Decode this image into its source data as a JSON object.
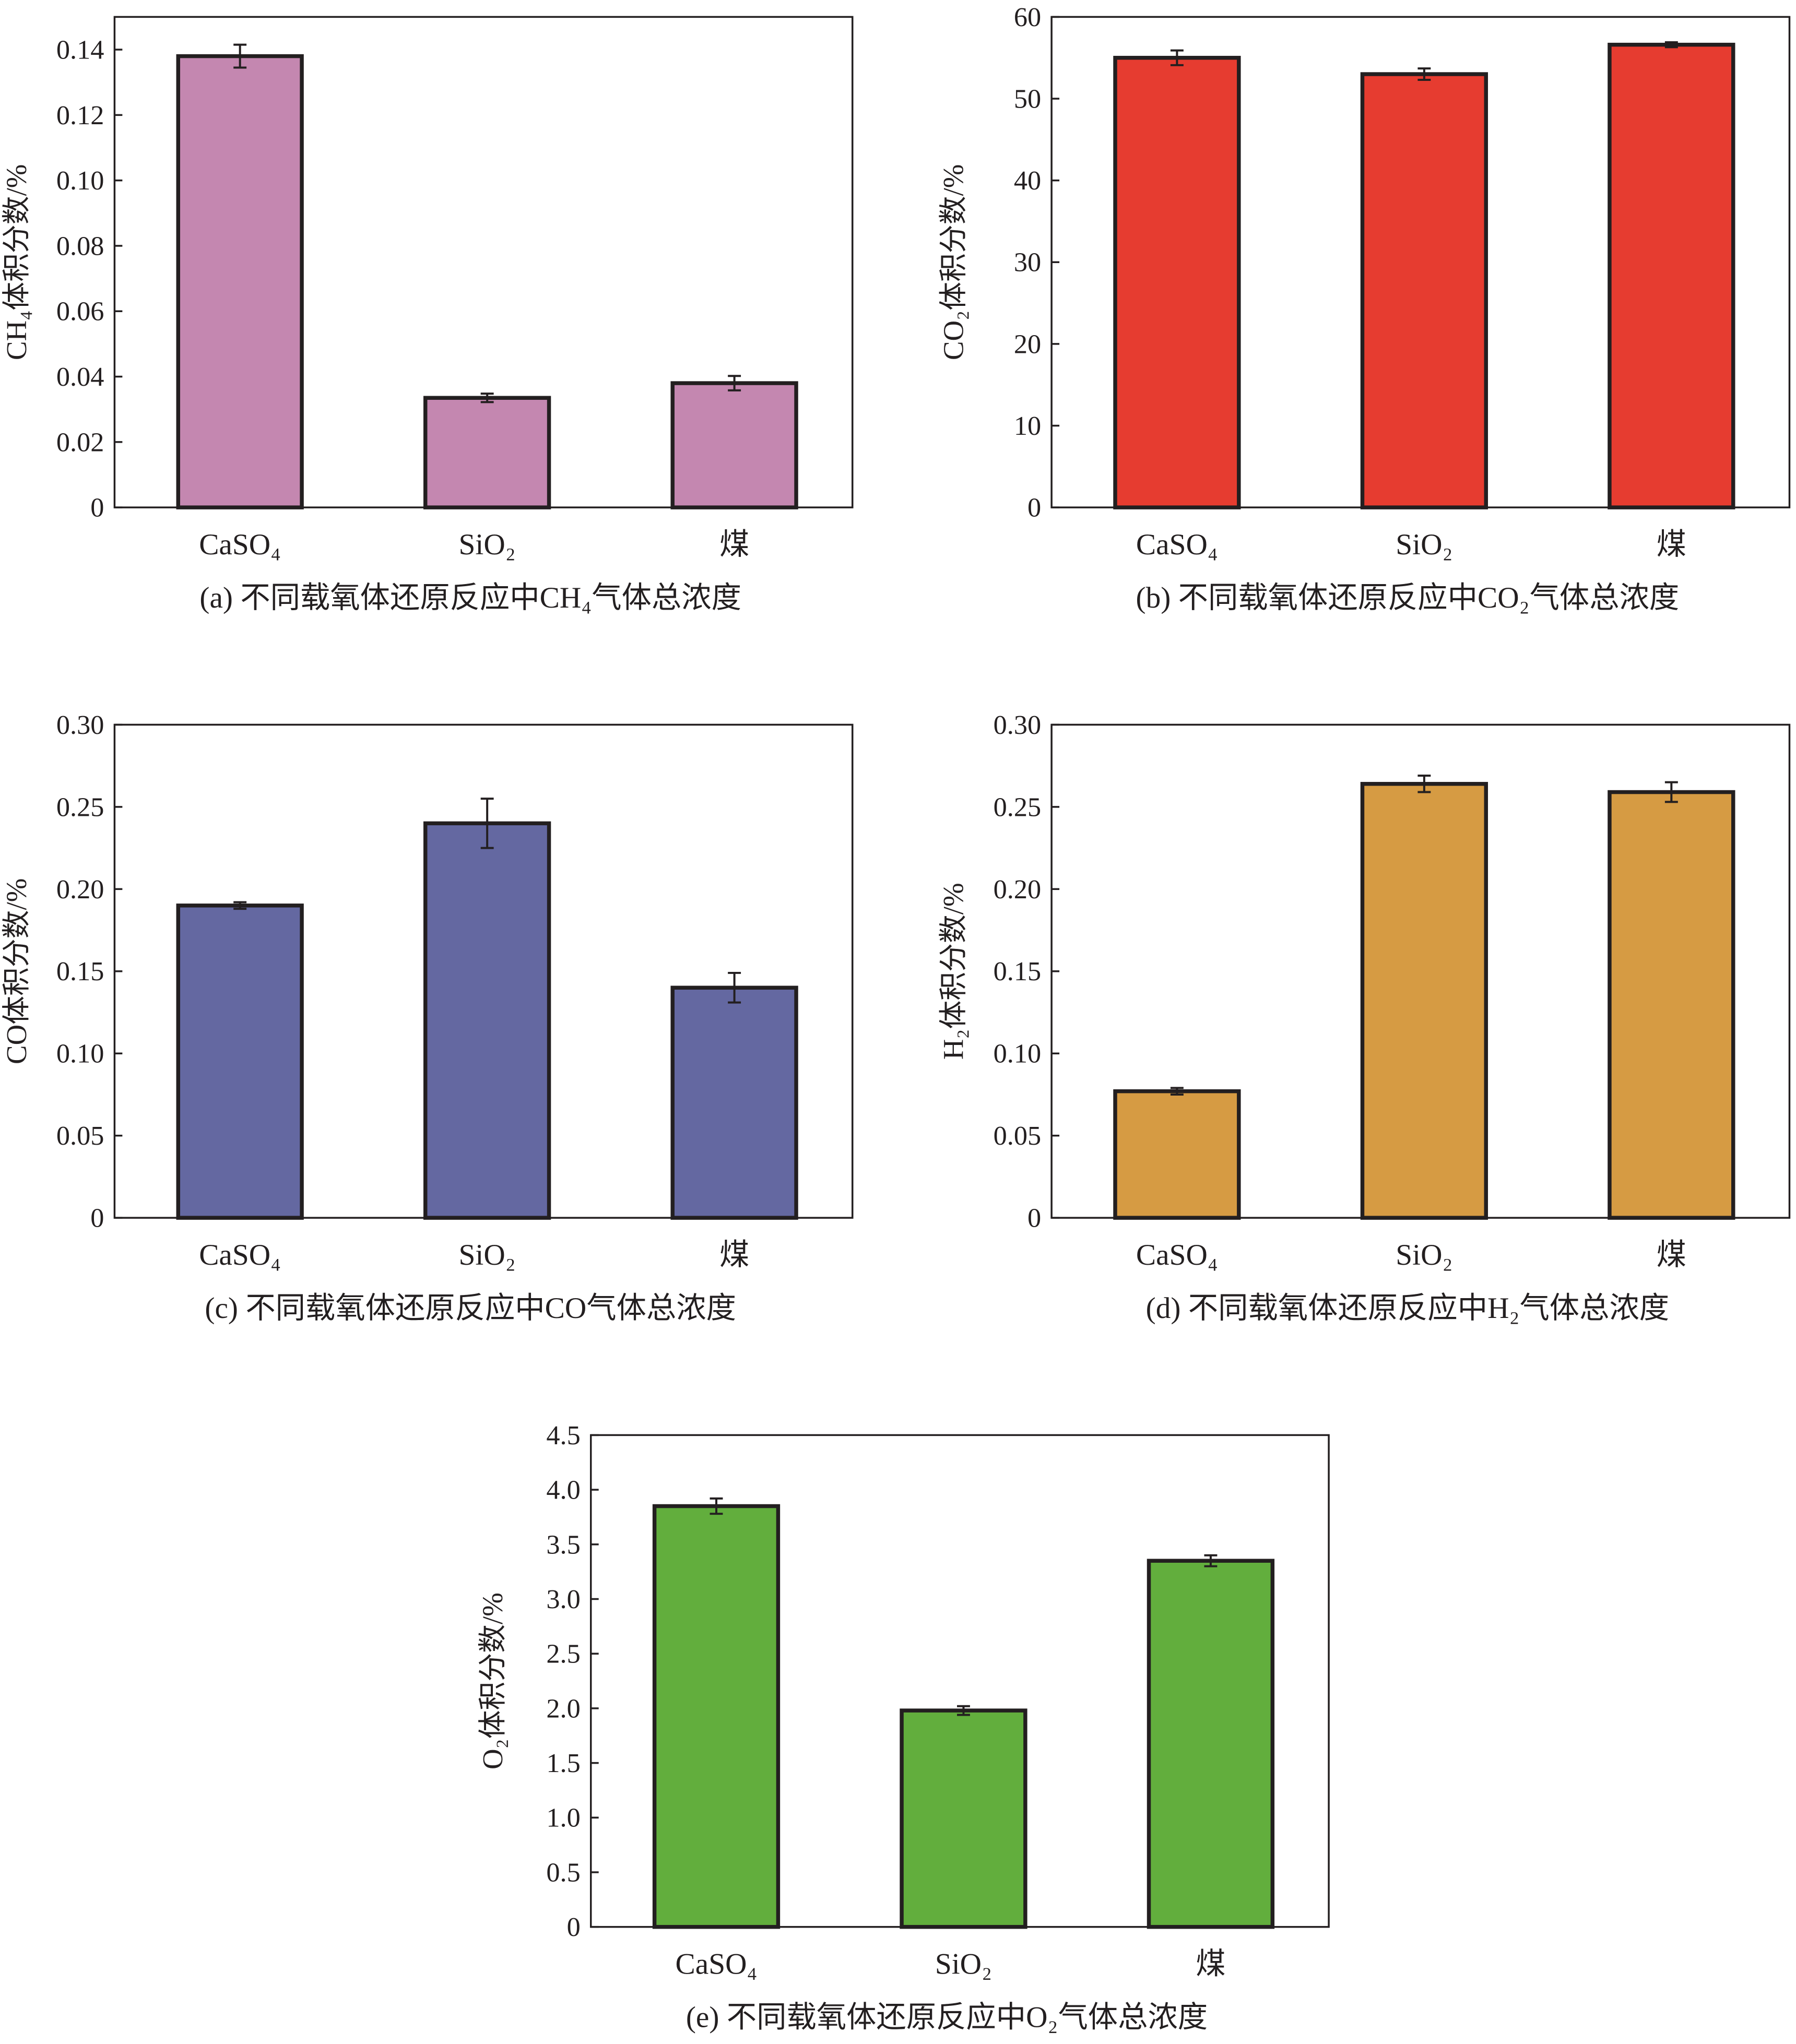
{
  "chart_data": [
    {
      "type": "bar",
      "caption": "(a) 不同载氧体还原反应中CH₄气体总浓度",
      "ylabel": "CH₄体积分数/%",
      "categories": [
        "CaSO₄",
        "SiO₂",
        "煤"
      ],
      "values": [
        0.138,
        0.0335,
        0.038
      ],
      "errors": [
        0.0035,
        0.0013,
        0.0022
      ],
      "ylim": [
        0,
        0.15
      ],
      "yticks": [
        0,
        0.02,
        0.04,
        0.06,
        0.08,
        0.1,
        0.12,
        0.14
      ],
      "tick_decimals": 2,
      "color": "#c487b0",
      "grid": false
    },
    {
      "type": "bar",
      "caption": "(b) 不同载氧体还原反应中CO₂气体总浓度",
      "ylabel": "CO₂体积分数/%",
      "categories": [
        "CaSO₄",
        "SiO₂",
        "煤"
      ],
      "values": [
        55.0,
        53.0,
        56.6
      ],
      "errors": [
        0.9,
        0.7,
        0.3
      ],
      "ylim": [
        0,
        60
      ],
      "yticks": [
        0,
        10,
        20,
        30,
        40,
        50,
        60
      ],
      "tick_decimals": 0,
      "color": "#e63c30",
      "grid": false
    },
    {
      "type": "bar",
      "caption": "(c) 不同载氧体还原反应中CO气体总浓度",
      "ylabel": "CO体积分数/%",
      "categories": [
        "CaSO₄",
        "SiO₂",
        "煤"
      ],
      "values": [
        0.19,
        0.24,
        0.14
      ],
      "errors": [
        0.002,
        0.015,
        0.009
      ],
      "ylim": [
        0,
        0.3
      ],
      "yticks": [
        0,
        0.05,
        0.1,
        0.15,
        0.2,
        0.25,
        0.3
      ],
      "tick_decimals": 2,
      "color": "#6468a1",
      "grid": false
    },
    {
      "type": "bar",
      "caption": "(d) 不同载氧体还原反应中H₂气体总浓度",
      "ylabel": "H₂体积分数/%",
      "categories": [
        "CaSO₄",
        "SiO₂",
        "煤"
      ],
      "values": [
        0.077,
        0.264,
        0.259
      ],
      "errors": [
        0.002,
        0.005,
        0.006
      ],
      "ylim": [
        0,
        0.3
      ],
      "yticks": [
        0,
        0.05,
        0.1,
        0.15,
        0.2,
        0.25,
        0.3
      ],
      "tick_decimals": 2,
      "color": "#d69b43",
      "grid": false
    },
    {
      "type": "bar",
      "caption": "(e) 不同载氧体还原反应中O₂气体总浓度",
      "ylabel": "O₂体积分数/%",
      "categories": [
        "CaSO₄",
        "SiO₂",
        "煤"
      ],
      "values": [
        3.85,
        1.98,
        3.35
      ],
      "errors": [
        0.07,
        0.04,
        0.05
      ],
      "ylim": [
        0,
        4.5
      ],
      "yticks": [
        0,
        0.5,
        1.0,
        1.5,
        2.0,
        2.5,
        3.0,
        3.5,
        4.0,
        4.5
      ],
      "tick_decimals": 1,
      "color": "#62ae3d",
      "grid": false
    }
  ]
}
